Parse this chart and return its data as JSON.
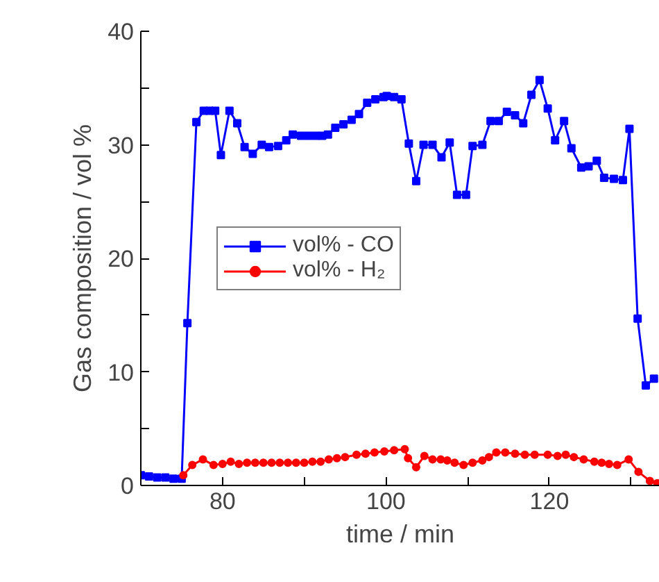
{
  "chart_data": {
    "type": "line",
    "xlabel": "time / min",
    "ylabel": "Gas composition / vol %",
    "xlim": [
      70,
      133.5
    ],
    "ylim": [
      0,
      40
    ],
    "xticks": [
      80,
      {
        "value": 90,
        "label": null
      },
      100,
      {
        "value": 110,
        "label": null
      },
      120,
      {
        "value": 130,
        "label": null
      }
    ],
    "yticks": [
      0,
      {
        "value": 5,
        "label": null
      },
      10,
      {
        "value": 15,
        "label": null
      },
      20,
      {
        "value": 25,
        "label": null
      },
      30,
      {
        "value": 35,
        "label": null
      },
      40
    ],
    "grid": false,
    "legend": "left",
    "line_style": "solid",
    "series": [
      {
        "name": "vol% - CO",
        "color": "#0000ff",
        "marker": "square",
        "x": [
          70,
          71,
          72,
          73,
          74,
          75,
          75.7,
          76.8,
          77.7,
          78.4,
          79.1,
          79.8,
          80.85,
          81.8,
          82.7,
          83.7,
          84.8,
          85.7,
          86.8,
          87.8,
          88.6,
          89.6,
          90.5,
          91.4,
          92.2,
          92.9,
          93.8,
          94.8,
          95.8,
          96.7,
          97.7,
          98.7,
          99.7,
          100.1,
          101.0,
          101.9,
          102.8,
          103.7,
          104.6,
          105.7,
          106.8,
          107.8,
          108.7,
          109.8,
          110.6,
          111.8,
          112.8,
          113.8,
          114.8,
          115.8,
          116.8,
          117.8,
          118.8,
          119.8,
          120.7,
          121.8,
          122.7,
          123.9,
          124.8,
          125.8,
          126.7,
          127.9,
          129.0,
          129.8,
          130.8,
          131.8,
          132.8
        ],
        "values": [
          0.9,
          0.8,
          0.7,
          0.7,
          0.6,
          0.6,
          14.3,
          32.0,
          33.0,
          33.0,
          33.0,
          29.1,
          33.0,
          31.9,
          29.8,
          29.2,
          30.0,
          29.8,
          29.9,
          30.4,
          30.9,
          30.8,
          30.8,
          30.8,
          30.8,
          30.9,
          31.5,
          31.8,
          32.2,
          32.7,
          33.7,
          34.0,
          34.2,
          34.3,
          34.2,
          34.0,
          30.1,
          26.8,
          30.0,
          30.0,
          28.9,
          30.2,
          25.6,
          25.6,
          29.9,
          30.0,
          32.1,
          32.1,
          32.9,
          32.6,
          31.9,
          34.4,
          35.7,
          33.2,
          30.4,
          32.1,
          29.7,
          28.0,
          28.1,
          28.6,
          27.1,
          27.0,
          26.9,
          31.4,
          14.7,
          8.8,
          9.4
        ]
      },
      {
        "name": "vol% - H₂",
        "color": "#ff0000",
        "marker": "circle",
        "x": [
          75.2,
          76.3,
          77.6,
          78.9,
          80,
          81,
          82,
          83,
          84,
          85,
          86,
          87,
          88,
          89,
          90,
          91,
          92,
          93,
          94,
          95,
          96.4,
          97.5,
          98.6,
          99.8,
          101,
          102.3,
          102.7,
          103.7,
          104.7,
          105.7,
          106.7,
          107.5,
          108.4,
          109.5,
          110.6,
          111.8,
          112.6,
          113.5,
          114.6,
          115.8,
          117,
          118.2,
          119.8,
          121,
          122,
          123,
          124.2,
          125.5,
          126.4,
          127.3,
          128.3,
          129.7,
          130.9,
          132.3,
          133.2
        ],
        "values": [
          0.9,
          1.8,
          2.3,
          1.8,
          1.9,
          2.1,
          1.9,
          2.0,
          2.0,
          2.0,
          2.0,
          2.0,
          2.0,
          2.0,
          2.0,
          2.1,
          2.1,
          2.3,
          2.4,
          2.5,
          2.7,
          2.8,
          2.9,
          3.0,
          3.1,
          3.2,
          2.4,
          1.6,
          2.6,
          2.3,
          2.3,
          2.2,
          2.0,
          1.8,
          2.0,
          2.2,
          2.5,
          2.9,
          2.9,
          2.8,
          2.7,
          2.7,
          2.7,
          2.6,
          2.7,
          2.5,
          2.3,
          2.1,
          2.0,
          1.9,
          1.8,
          2.3,
          1.2,
          0.4,
          0.2
        ]
      }
    ]
  }
}
